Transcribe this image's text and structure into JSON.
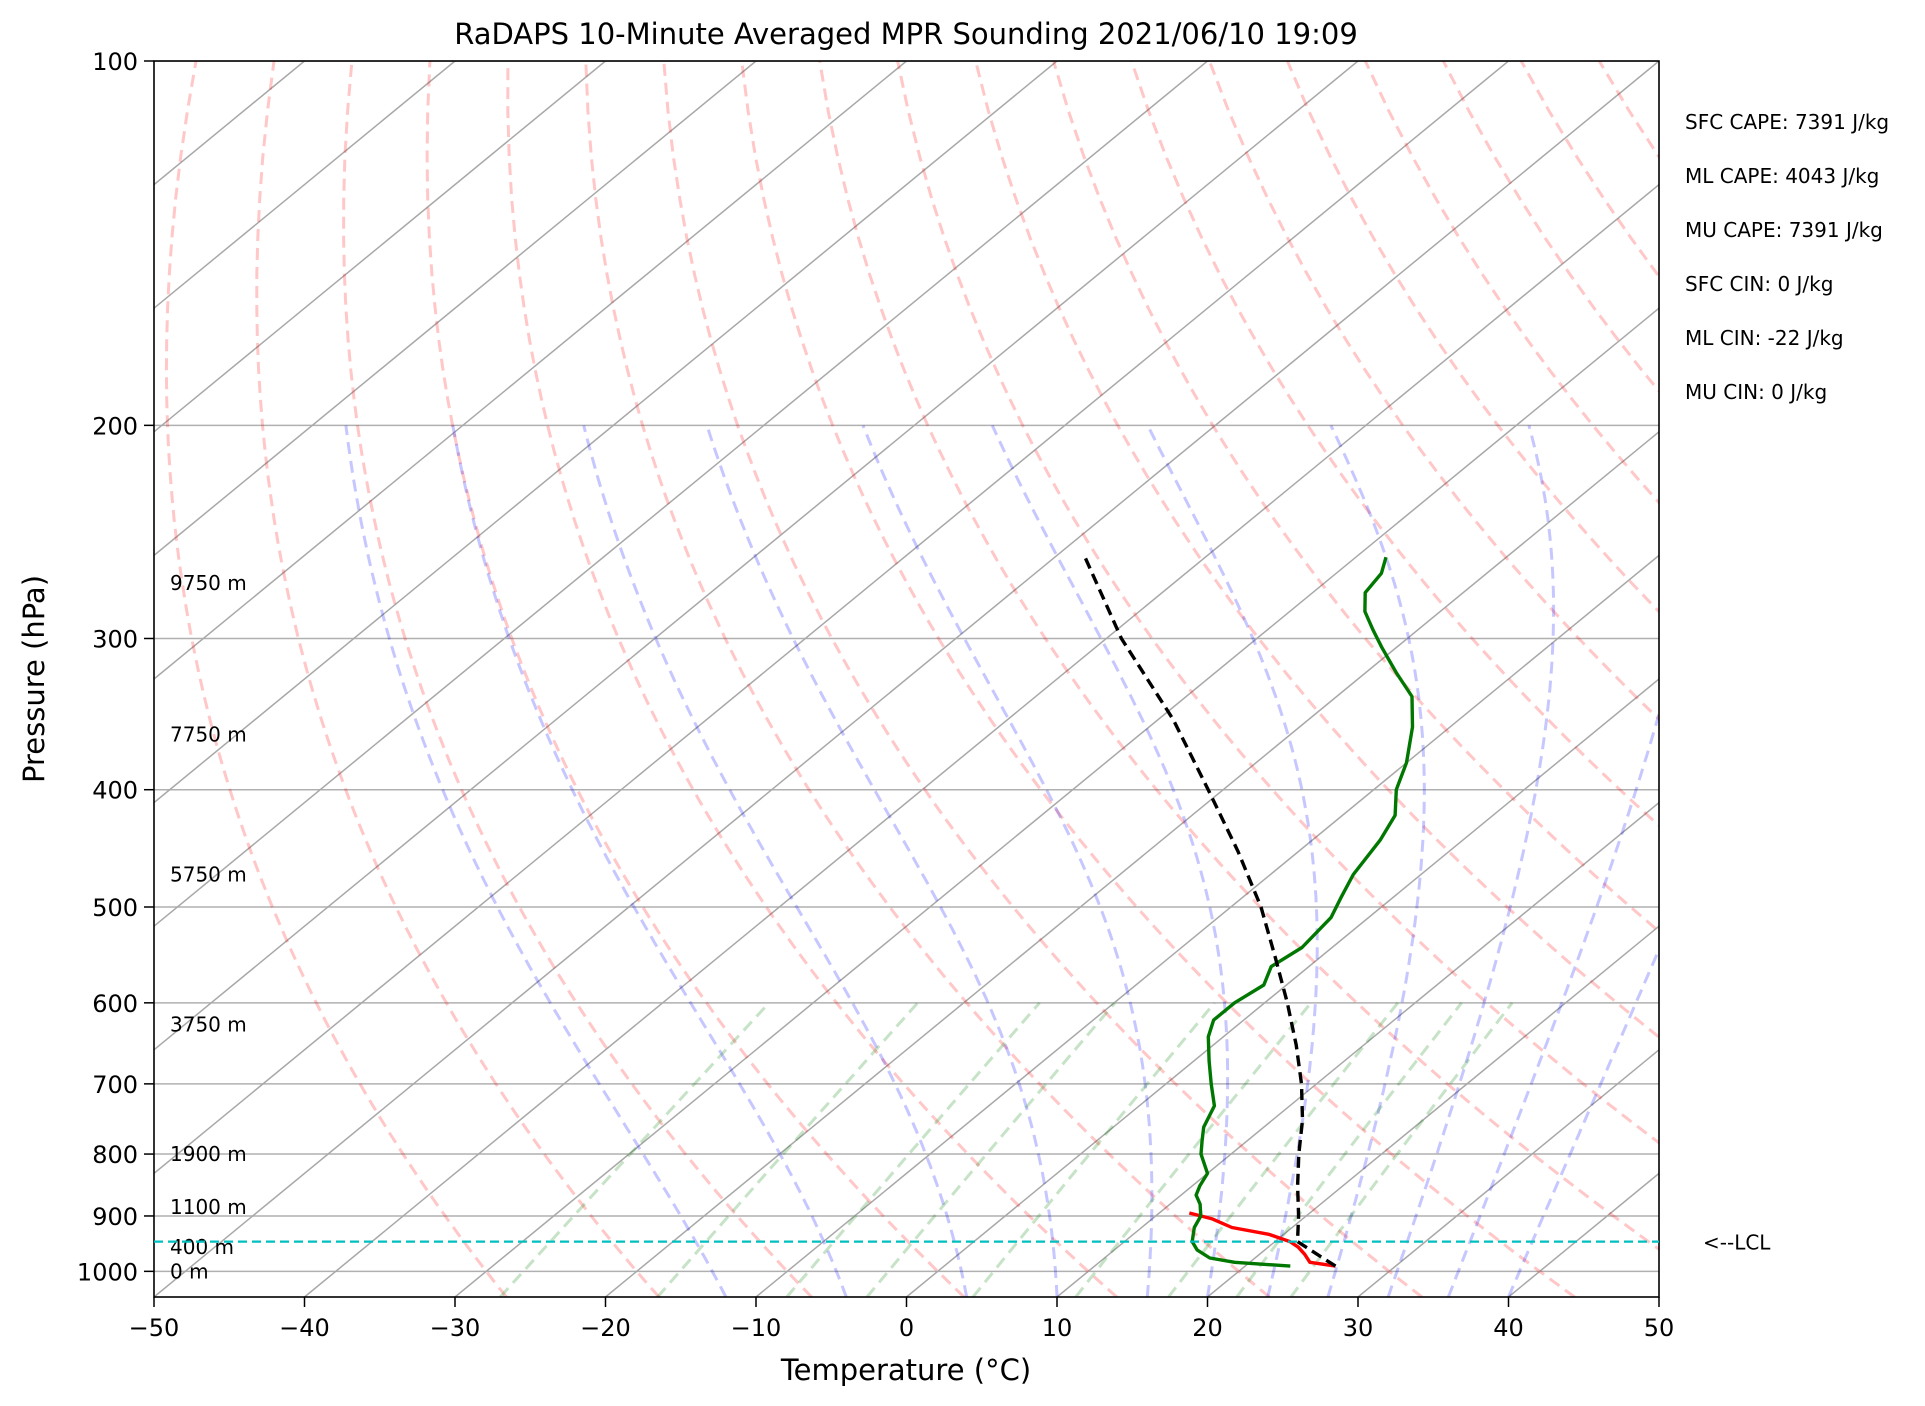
{
  "chart_data": {
    "type": "line",
    "diagram": "skew-T log-P",
    "title": "RaDAPS 10-Minute Averaged MPR Sounding 2021/06/10 19:09",
    "xlabel": "Temperature (°C)",
    "ylabel": "Pressure (hPa)",
    "xlim": [
      -50,
      50
    ],
    "ylim": [
      1050,
      100
    ],
    "y_scale": "log",
    "grid": true,
    "x_ticks": [
      "−50",
      "−40",
      "−30",
      "−20",
      "−10",
      "0",
      "10",
      "20",
      "30",
      "40",
      "50"
    ],
    "y_ticks": [
      {
        "p": 100,
        "label": "100"
      },
      {
        "p": 200,
        "label": "200"
      },
      {
        "p": 300,
        "label": "300"
      },
      {
        "p": 400,
        "label": "400"
      },
      {
        "p": 500,
        "label": "500"
      },
      {
        "p": 600,
        "label": "600"
      },
      {
        "p": 700,
        "label": "700"
      },
      {
        "p": 800,
        "label": "800"
      },
      {
        "p": 900,
        "label": "900"
      },
      {
        "p": 1000,
        "label": "1000"
      }
    ],
    "height_labels": [
      {
        "p": 1000,
        "label": "0 m"
      },
      {
        "p": 955,
        "label": "400 m"
      },
      {
        "p": 885,
        "label": "1100 m"
      },
      {
        "p": 800,
        "label": "1900 m"
      },
      {
        "p": 625,
        "label": "3750 m"
      },
      {
        "p": 470,
        "label": "5750 m"
      },
      {
        "p": 360,
        "label": "7750 m"
      },
      {
        "p": 270,
        "label": "9750 m"
      }
    ],
    "stats": [
      {
        "label": "SFC CAPE: 7391 J/kg"
      },
      {
        "label": "ML CAPE: 4043 J/kg"
      },
      {
        "label": "MU CAPE: 7391 J/kg"
      },
      {
        "label": "SFC CIN: 0 J/kg"
      },
      {
        "label": "ML CIN: -22 J/kg"
      },
      {
        "label": "MU CIN: 0 J/kg"
      }
    ],
    "lcl": {
      "p": 945,
      "label": "<--LCL",
      "color": "#00bfbf"
    },
    "series": [
      {
        "color": "#ff0000",
        "points": [
          {
            "p": 990,
            "t": 26
          },
          {
            "p": 983,
            "t": 24
          },
          {
            "p": 968,
            "t": 23
          },
          {
            "p": 955,
            "t": 22
          },
          {
            "p": 945,
            "t": 21
          },
          {
            "p": 932,
            "t": 19
          },
          {
            "p": 920,
            "t": 16
          },
          {
            "p": 905,
            "t": 14
          },
          {
            "p": 895,
            "t": 12
          }
        ]
      },
      {
        "color": "#007700",
        "points": [
          {
            "p": 990,
            "t": 23
          },
          {
            "p": 983,
            "t": 19
          },
          {
            "p": 975,
            "t": 17
          },
          {
            "p": 960,
            "t": 15.5
          },
          {
            "p": 945,
            "t": 14.5
          },
          {
            "p": 920,
            "t": 13.5
          },
          {
            "p": 900,
            "t": 13
          },
          {
            "p": 880,
            "t": 12
          },
          {
            "p": 865,
            "t": 11
          },
          {
            "p": 850,
            "t": 10.5
          },
          {
            "p": 830,
            "t": 10
          },
          {
            "p": 800,
            "t": 8
          },
          {
            "p": 780,
            "t": 7
          },
          {
            "p": 760,
            "t": 6
          },
          {
            "p": 730,
            "t": 5
          },
          {
            "p": 700,
            "t": 3
          },
          {
            "p": 670,
            "t": 1
          },
          {
            "p": 640,
            "t": -1
          },
          {
            "p": 620,
            "t": -2
          },
          {
            "p": 600,
            "t": -2
          },
          {
            "p": 580,
            "t": -1.5
          },
          {
            "p": 560,
            "t": -2.5
          },
          {
            "p": 540,
            "t": -2
          },
          {
            "p": 510,
            "t": -2.5
          },
          {
            "p": 490,
            "t": -3.5
          },
          {
            "p": 470,
            "t": -4.5
          },
          {
            "p": 440,
            "t": -5.5
          },
          {
            "p": 420,
            "t": -6.5
          },
          {
            "p": 400,
            "t": -8.5
          },
          {
            "p": 380,
            "t": -10
          },
          {
            "p": 355,
            "t": -12.5
          },
          {
            "p": 335,
            "t": -15
          },
          {
            "p": 320,
            "t": -18
          },
          {
            "p": 305,
            "t": -21
          },
          {
            "p": 295,
            "t": -23
          },
          {
            "p": 285,
            "t": -25
          },
          {
            "p": 275,
            "t": -26.5
          },
          {
            "p": 265,
            "t": -27
          },
          {
            "p": 257,
            "t": -28
          }
        ]
      },
      {
        "color": "#000000",
        "dashed": true,
        "points": [
          {
            "p": 990,
            "t": 26
          },
          {
            "p": 945,
            "t": 21.5
          },
          {
            "p": 900,
            "t": 19.5
          },
          {
            "p": 850,
            "t": 17
          },
          {
            "p": 800,
            "t": 14.5
          },
          {
            "p": 750,
            "t": 12
          },
          {
            "p": 700,
            "t": 9
          },
          {
            "p": 650,
            "t": 5.5
          },
          {
            "p": 600,
            "t": 1.5
          },
          {
            "p": 550,
            "t": -3
          },
          {
            "p": 500,
            "t": -8
          },
          {
            "p": 450,
            "t": -14
          },
          {
            "p": 400,
            "t": -21
          },
          {
            "p": 350,
            "t": -29
          },
          {
            "p": 300,
            "t": -39
          },
          {
            "p": 257,
            "t": -48
          }
        ]
      }
    ]
  }
}
